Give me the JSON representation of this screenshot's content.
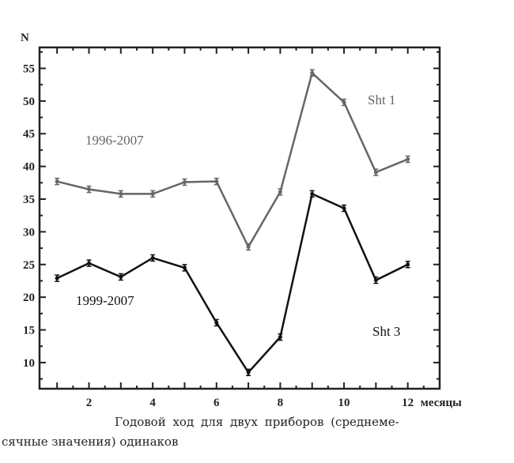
{
  "chart_data": {
    "type": "line",
    "ylabel": "N",
    "xlabel": "месяцы",
    "x": [
      1,
      2,
      3,
      4,
      5,
      6,
      7,
      8,
      9,
      10,
      11,
      12
    ],
    "xticks": [
      2,
      4,
      6,
      8,
      10,
      12
    ],
    "yticks": [
      10,
      15,
      20,
      25,
      30,
      35,
      40,
      45,
      50,
      55
    ],
    "xlim": [
      0.45,
      13
    ],
    "ylim": [
      6,
      58.2
    ],
    "grid": false,
    "series": [
      {
        "name": "Sht 1",
        "period": "1996-2007",
        "color": "#666666",
        "values": [
          37.7,
          36.5,
          35.8,
          35.8,
          37.6,
          37.7,
          27.7,
          36.1,
          54.3,
          49.8,
          39.1,
          41.1
        ]
      },
      {
        "name": "Sht 3",
        "period": "1999-2007",
        "color": "#111111",
        "values": [
          22.9,
          25.2,
          23.1,
          26.0,
          24.5,
          16.1,
          8.5,
          13.9,
          35.8,
          33.6,
          22.6,
          25.0
        ]
      }
    ],
    "caption": [
      "Годовой ход для двух приборов (среднеме-",
      "сячные значения) одинаков"
    ]
  }
}
